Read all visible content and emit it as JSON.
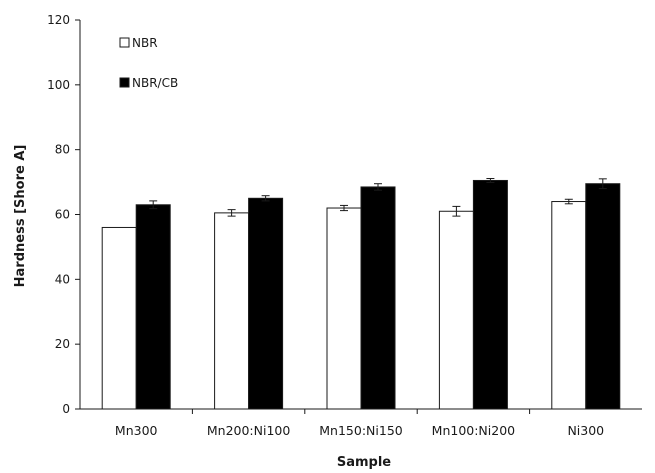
{
  "chart_data": {
    "type": "bar",
    "title": "",
    "xlabel": "Sample",
    "ylabel": "Hardness [Shore A]",
    "ylim": [
      0,
      120
    ],
    "yticks": [
      0,
      20,
      40,
      60,
      80,
      100,
      120
    ],
    "grid": false,
    "legend_position": "top-left",
    "categories": [
      "Mn300",
      "Mn200:Ni100",
      "Mn150:Ni150",
      "Mn100:Ni200",
      "Ni300"
    ],
    "series": [
      {
        "name": "NBR",
        "color": "#ffffff",
        "values": [
          56,
          60.5,
          62,
          61,
          64
        ],
        "errors": [
          0,
          1,
          0.8,
          1.5,
          0.7
        ]
      },
      {
        "name": "NBR/CB",
        "color": "#000000",
        "values": [
          63,
          65,
          68.5,
          70.5,
          69.5
        ],
        "errors": [
          1.2,
          0.8,
          1,
          0.6,
          1.5
        ]
      }
    ]
  }
}
